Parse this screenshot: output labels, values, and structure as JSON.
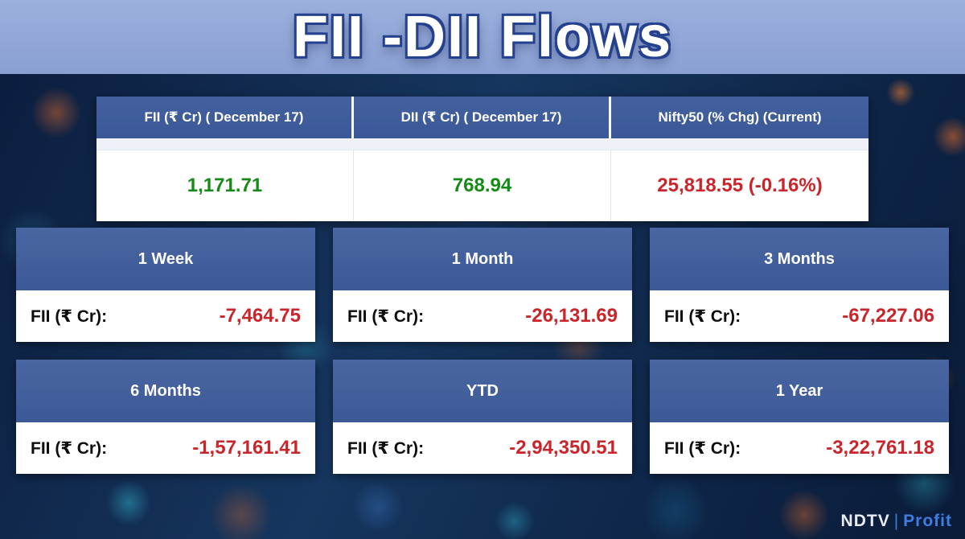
{
  "banner": {
    "title": "FII -DII Flows"
  },
  "summary_table": {
    "columns": [
      {
        "header": "FII (₹ Cr) ( December 17)",
        "value": "1,171.71",
        "value_color": "#168a16"
      },
      {
        "header": "DII (₹ Cr) ( December 17)",
        "value": "768.94",
        "value_color": "#168a16"
      },
      {
        "header": "Nifty50 (% Chg) (Current)",
        "value": "25,818.55 (-0.16%)",
        "value_color": "#c9252b"
      }
    ]
  },
  "cards": [
    {
      "period": "1 Week",
      "label": "FII (₹ Cr):",
      "value": "-7,464.75"
    },
    {
      "period": "1 Month",
      "label": "FII (₹ Cr):",
      "value": "-26,131.69"
    },
    {
      "period": "3 Months",
      "label": "FII (₹ Cr):",
      "value": "-67,227.06"
    },
    {
      "period": "6 Months",
      "label": "FII (₹ Cr):",
      "value": "-1,57,161.41"
    },
    {
      "period": "YTD",
      "label": "FII (₹ Cr):",
      "value": "-2,94,350.51"
    },
    {
      "period": "1 Year",
      "label": "FII (₹ Cr):",
      "value": "-3,22,761.18"
    }
  ],
  "logo": {
    "ndtv": "NDTV",
    "separator": "|",
    "profit": "Profit"
  },
  "colors": {
    "banner_blue": "#8fa4d4",
    "header_blue": "#405e9f",
    "positive_green": "#168a16",
    "negative_red": "#c9252b",
    "background_navy": "#0b1c3c"
  },
  "chart_data": {
    "type": "table",
    "title": "FII -DII Flows",
    "summary": {
      "columns": [
        "FII (₹ Cr) ( December 17)",
        "DII (₹ Cr) ( December 17)",
        "Nifty50 (% Chg) (Current)"
      ],
      "values": [
        1171.71,
        768.94,
        "25,818.55 (-0.16%)"
      ],
      "nifty50_level": 25818.55,
      "nifty50_pct_chg": -0.16
    },
    "fii_flows_by_period": {
      "unit": "₹ Cr",
      "categories": [
        "1 Week",
        "1 Month",
        "3 Months",
        "6 Months",
        "YTD",
        "1 Year"
      ],
      "values": [
        -7464.75,
        -26131.69,
        -67227.06,
        -157161.41,
        -294350.51,
        -322761.18
      ]
    }
  }
}
